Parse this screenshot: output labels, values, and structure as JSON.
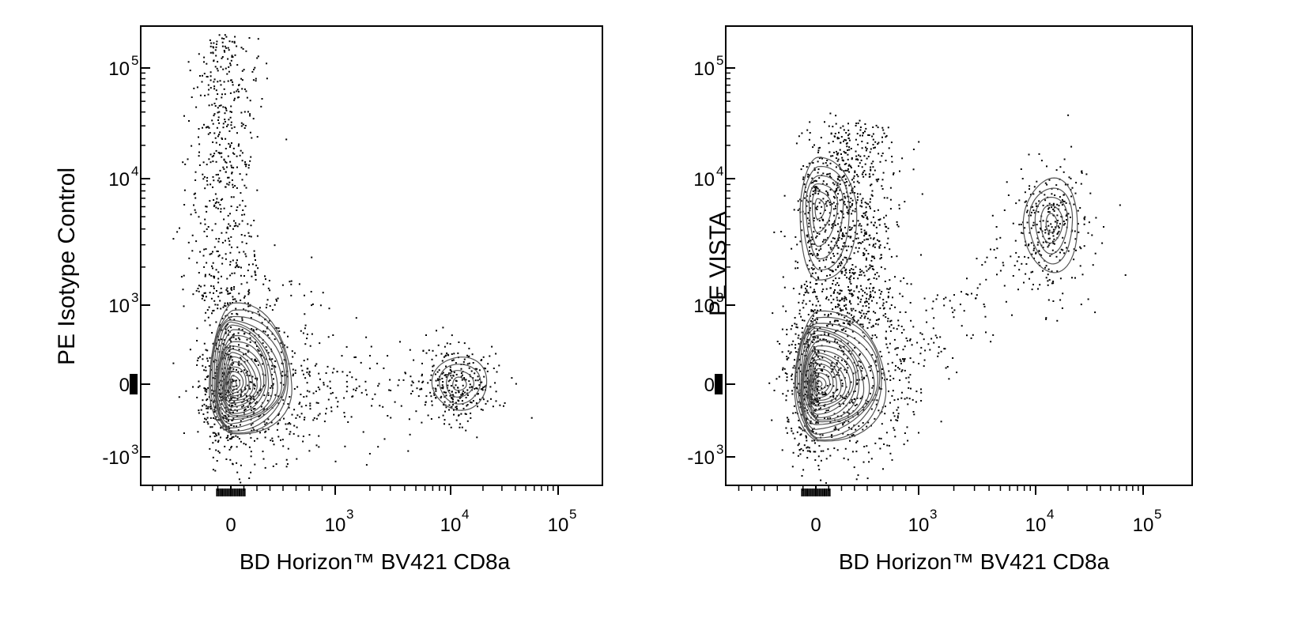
{
  "chart_data": [
    {
      "type": "scatter",
      "subtype": "flow-cytometry-contour-with-outliers",
      "xlabel": "BD Horizon™ BV421  CD8a",
      "ylabel": "PE  Isotype Control",
      "x_scale": "biexponential",
      "y_scale": "biexponential",
      "xlim": [
        -300,
        200000
      ],
      "ylim": [
        -2000,
        250000
      ],
      "x_ticks": [
        {
          "value": 0,
          "base": "0",
          "exp": ""
        },
        {
          "value": 1000,
          "base": "10",
          "exp": "3"
        },
        {
          "value": 10000,
          "base": "10",
          "exp": "4"
        },
        {
          "value": 100000,
          "base": "10",
          "exp": "5"
        }
      ],
      "y_ticks": [
        {
          "value": -1000,
          "base": "-10",
          "exp": "3"
        },
        {
          "value": 0,
          "base": "0",
          "exp": ""
        },
        {
          "value": 1000,
          "base": "10",
          "exp": "3"
        },
        {
          "value": 10000,
          "base": "10",
          "exp": "4"
        },
        {
          "value": 100000,
          "base": "10",
          "exp": "5"
        }
      ],
      "populations": [
        {
          "name": "",
          "x_center": 20,
          "y_center": 0,
          "x_spread": [
            -200,
            600
          ],
          "y_spread": [
            -700,
            1000
          ],
          "levels": 18
        },
        {
          "name": "",
          "x_center": 12000,
          "y_center": 0,
          "x_spread": [
            7000,
            22000
          ],
          "y_spread": [
            -350,
            350
          ],
          "levels": 4
        }
      ],
      "grid": false,
      "legend": "none"
    },
    {
      "type": "scatter",
      "subtype": "flow-cytometry-contour-with-outliers",
      "xlabel": "BD Horizon™ BV421  CD8a",
      "ylabel": "PE  VISTA",
      "x_scale": "biexponential",
      "y_scale": "biexponential",
      "xlim": [
        -300,
        200000
      ],
      "ylim": [
        -2000,
        250000
      ],
      "x_ticks": [
        {
          "value": 0,
          "base": "0",
          "exp": ""
        },
        {
          "value": 1000,
          "base": "10",
          "exp": "3"
        },
        {
          "value": 10000,
          "base": "10",
          "exp": "4"
        },
        {
          "value": 100000,
          "base": "10",
          "exp": "5"
        }
      ],
      "y_ticks": [
        {
          "value": -1000,
          "base": "-10",
          "exp": "3"
        },
        {
          "value": 0,
          "base": "0",
          "exp": ""
        },
        {
          "value": 1000,
          "base": "10",
          "exp": "3"
        },
        {
          "value": 10000,
          "base": "10",
          "exp": "4"
        },
        {
          "value": 100000,
          "base": "10",
          "exp": "5"
        }
      ],
      "populations": [
        {
          "name": "",
          "x_center": 20,
          "y_center": 0,
          "x_spread": [
            -200,
            700
          ],
          "y_spread": [
            -800,
            900
          ],
          "levels": 18
        },
        {
          "name": "",
          "x_center": 20,
          "y_center": 6000,
          "x_spread": [
            -150,
            400
          ],
          "y_spread": [
            1500,
            15000
          ],
          "levels": 6
        },
        {
          "name": "",
          "x_center": 14000,
          "y_center": 4500,
          "x_spread": [
            8000,
            25000
          ],
          "y_spread": [
            1800,
            10000
          ],
          "levels": 5
        }
      ],
      "grid": false,
      "legend": "none"
    }
  ]
}
